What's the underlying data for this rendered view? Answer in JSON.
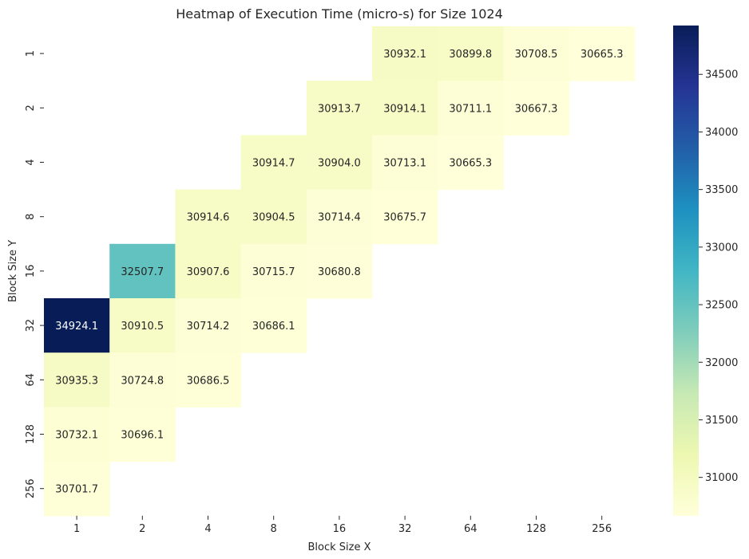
{
  "chart_data": {
    "type": "heatmap",
    "title": "Heatmap of Execution Time (micro-s) for Size 1024",
    "xlabel": "Block Size X",
    "ylabel": "Block Size Y",
    "x_categories": [
      "1",
      "2",
      "4",
      "8",
      "16",
      "32",
      "64",
      "128",
      "256"
    ],
    "y_categories": [
      "1",
      "2",
      "4",
      "8",
      "16",
      "32",
      "64",
      "128",
      "256"
    ],
    "values": [
      [
        null,
        null,
        null,
        null,
        null,
        30932.1,
        30899.8,
        30708.5,
        30665.3
      ],
      [
        null,
        null,
        null,
        null,
        30913.7,
        30914.1,
        30711.1,
        30667.3,
        null
      ],
      [
        null,
        null,
        null,
        30914.7,
        30904.0,
        30713.1,
        30665.3,
        null,
        null
      ],
      [
        null,
        null,
        30914.6,
        30904.5,
        30714.4,
        30675.7,
        null,
        null,
        null
      ],
      [
        null,
        32507.7,
        30907.6,
        30715.7,
        30680.8,
        null,
        null,
        null,
        null
      ],
      [
        34924.1,
        30910.5,
        30714.2,
        30686.1,
        null,
        null,
        null,
        null,
        null
      ],
      [
        30935.3,
        30724.8,
        30686.5,
        null,
        null,
        null,
        null,
        null,
        null
      ],
      [
        30732.1,
        30696.1,
        null,
        null,
        null,
        null,
        null,
        null,
        null
      ],
      [
        30701.7,
        null,
        null,
        null,
        null,
        null,
        null,
        null,
        null
      ]
    ],
    "value_format": "one decimal",
    "colormap": "YlGnBu",
    "color_range": [
      30665.3,
      34924.1
    ],
    "colorbar_ticks": [
      31000,
      31500,
      32000,
      32500,
      33000,
      33500,
      34000,
      34500
    ],
    "annotated": true,
    "grid": false
  }
}
